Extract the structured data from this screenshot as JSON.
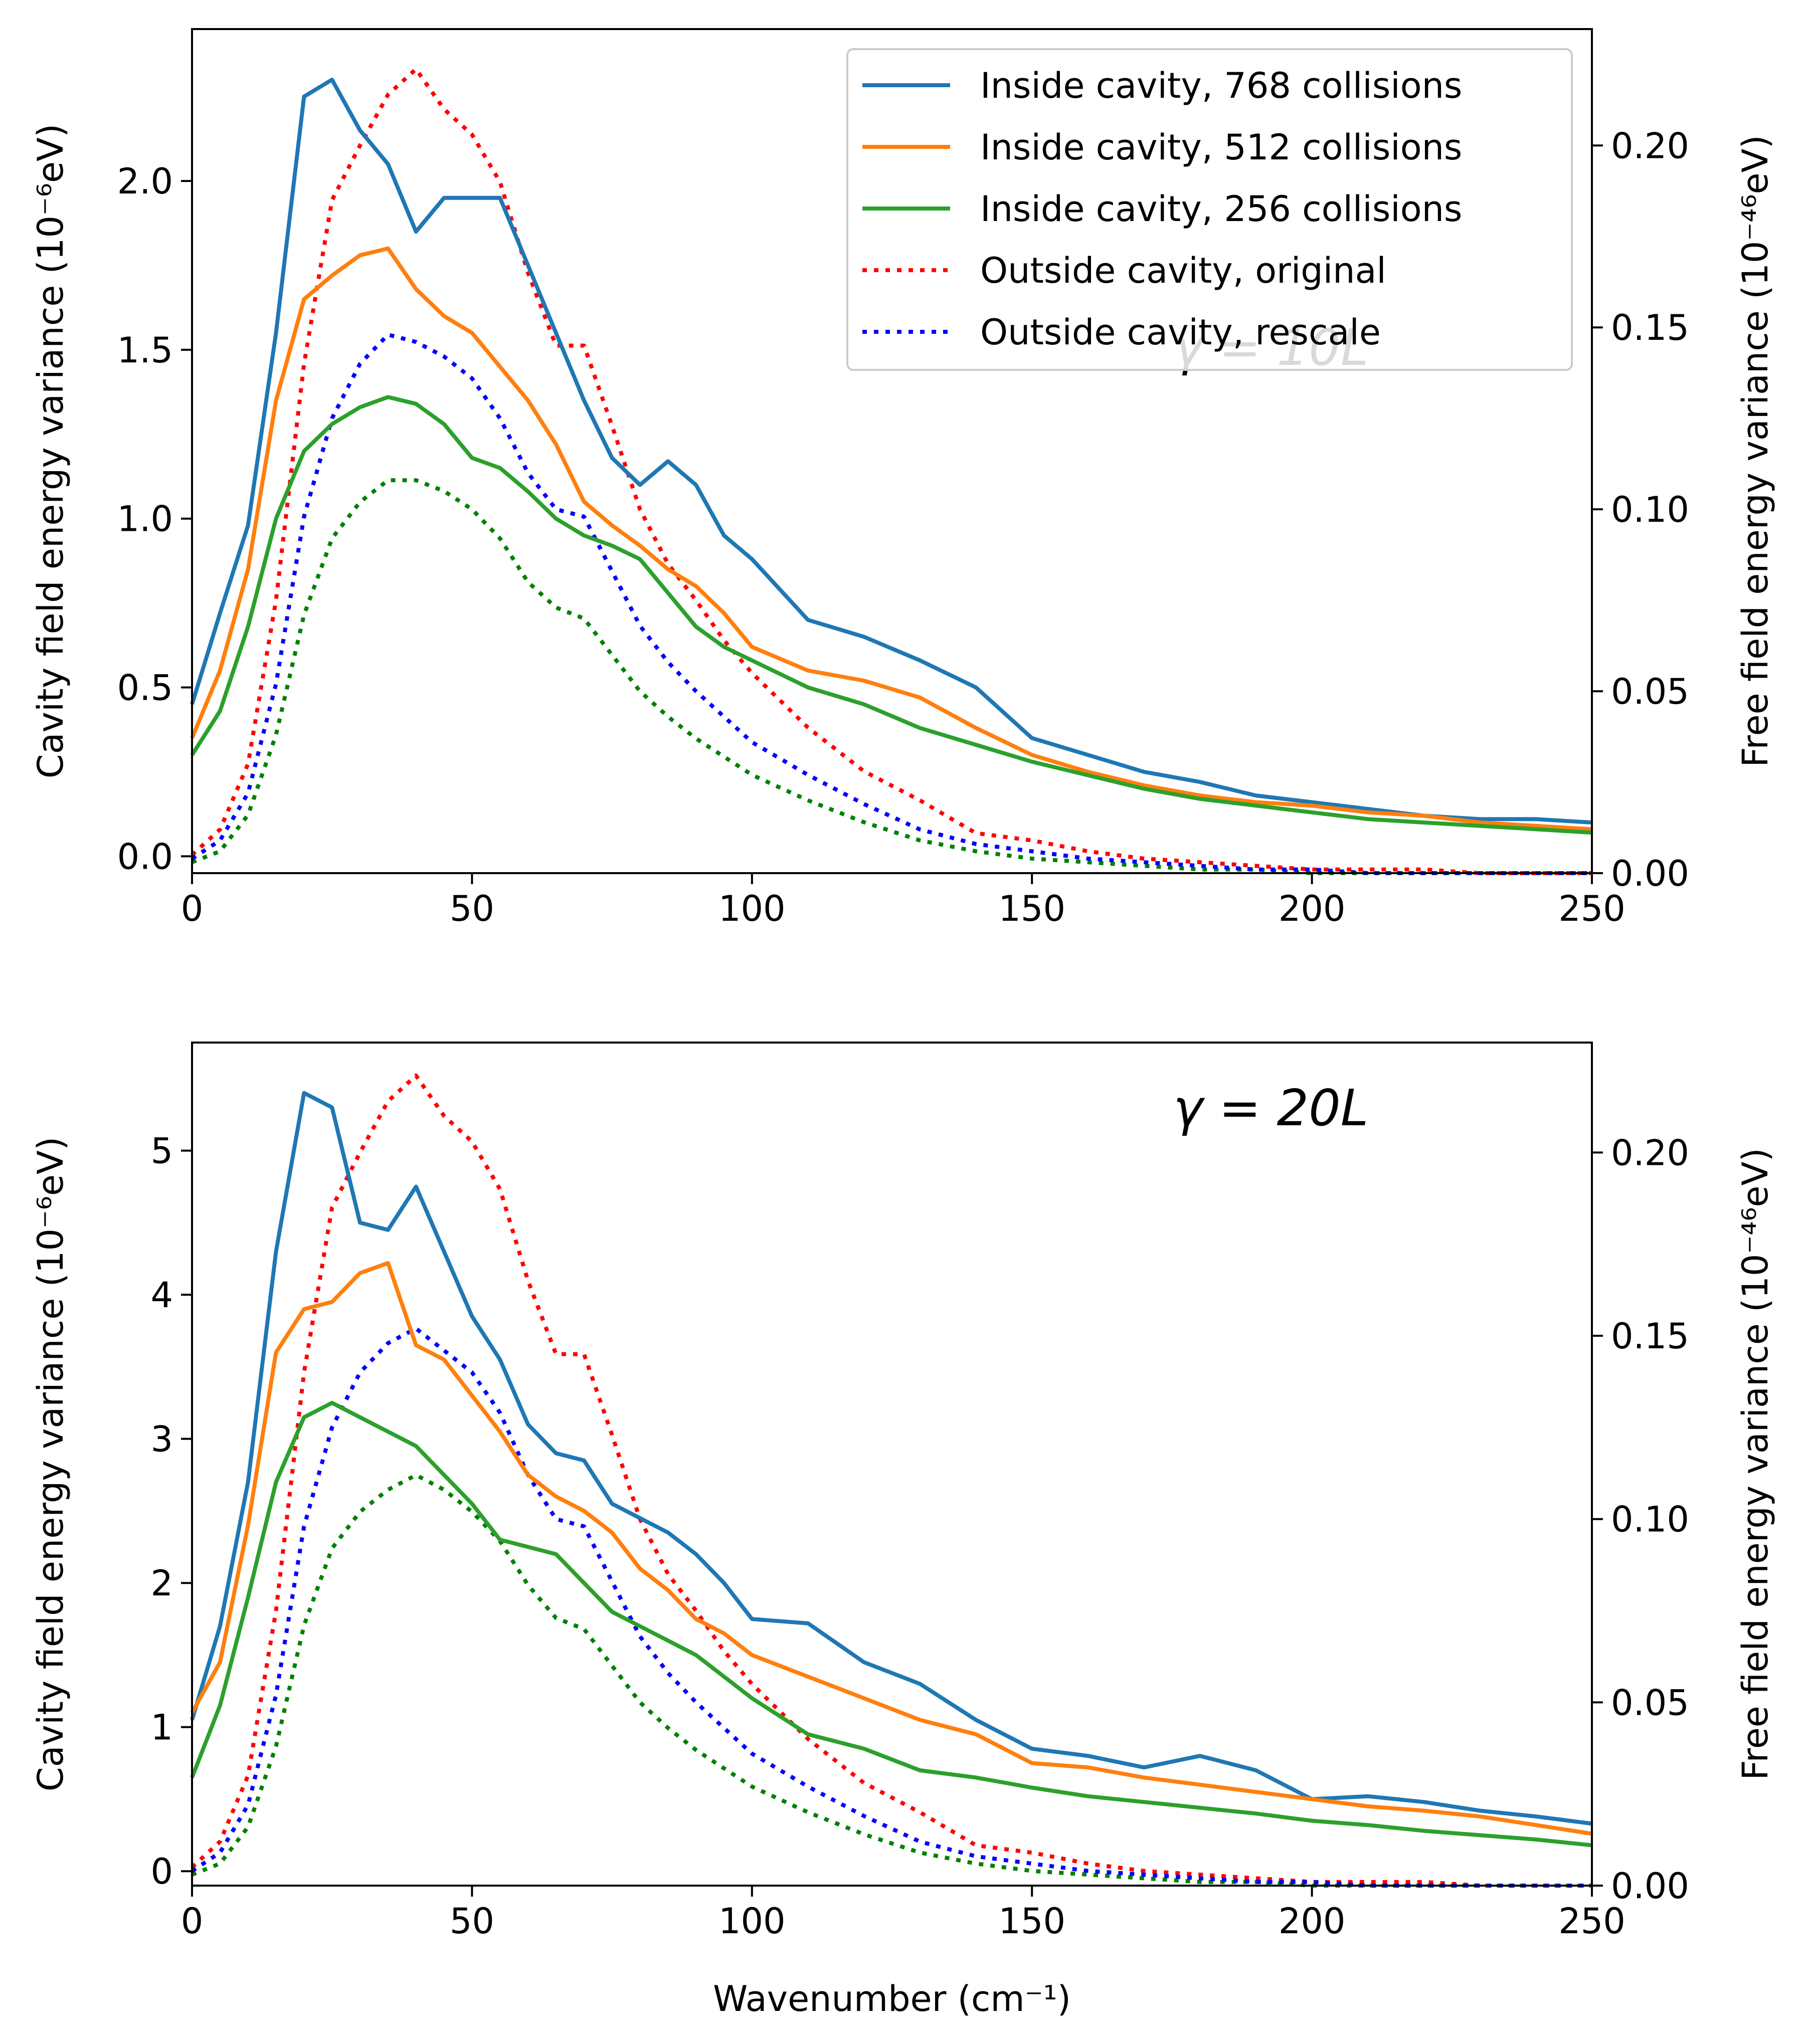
{
  "chart_data": [
    {
      "type": "line",
      "panel": "top",
      "annotation": "γ = 10L",
      "xlabel": "",
      "ylabel_left": "Cavity field energy variance (10⁻⁶eV)",
      "ylabel_right": "Free field energy variance (10⁻⁴⁶eV)",
      "xlim": [
        0,
        250
      ],
      "ylim_left": [
        -0.05,
        2.45
      ],
      "ylim_right": [
        0,
        0.232
      ],
      "xticks": [
        "0",
        "50",
        "100",
        "150",
        "200",
        "250"
      ],
      "yticks_left": [
        "0.0",
        "0.5",
        "1.0",
        "1.5",
        "2.0"
      ],
      "yticks_right": [
        "0.00",
        "0.05",
        "0.10",
        "0.15",
        "0.20"
      ],
      "grid": false,
      "legend_position": "top-right",
      "x": [
        0,
        5,
        10,
        15,
        20,
        25,
        30,
        35,
        40,
        45,
        50,
        55,
        60,
        65,
        70,
        75,
        80,
        85,
        90,
        95,
        100,
        110,
        120,
        130,
        140,
        150,
        160,
        170,
        180,
        190,
        200,
        210,
        220,
        230,
        240,
        250
      ],
      "series": [
        {
          "name": "Inside cavity, 768 collisions",
          "axis": "left",
          "style": "solid",
          "color": "#1f77b4",
          "values": [
            0.45,
            0.72,
            0.98,
            1.55,
            2.25,
            2.3,
            2.15,
            2.05,
            1.85,
            1.95,
            1.95,
            1.95,
            1.75,
            1.55,
            1.35,
            1.18,
            1.1,
            1.17,
            1.1,
            0.95,
            0.88,
            0.7,
            0.65,
            0.58,
            0.5,
            0.35,
            0.3,
            0.25,
            0.22,
            0.18,
            0.16,
            0.14,
            0.12,
            0.11,
            0.11,
            0.1
          ]
        },
        {
          "name": "Inside cavity, 512 collisions",
          "axis": "left",
          "style": "solid",
          "color": "#ff7f0e",
          "values": [
            0.35,
            0.55,
            0.85,
            1.35,
            1.65,
            1.72,
            1.78,
            1.8,
            1.68,
            1.6,
            1.55,
            1.45,
            1.35,
            1.22,
            1.05,
            0.98,
            0.92,
            0.85,
            0.8,
            0.72,
            0.62,
            0.55,
            0.52,
            0.47,
            0.38,
            0.3,
            0.25,
            0.21,
            0.18,
            0.16,
            0.15,
            0.13,
            0.12,
            0.1,
            0.09,
            0.08
          ]
        },
        {
          "name": "Inside cavity, 256 collisions",
          "axis": "left",
          "style": "solid",
          "color": "#2ca02c",
          "values": [
            0.3,
            0.43,
            0.68,
            1.0,
            1.2,
            1.28,
            1.33,
            1.36,
            1.34,
            1.28,
            1.18,
            1.15,
            1.08,
            1.0,
            0.95,
            0.92,
            0.88,
            0.78,
            0.68,
            0.62,
            0.58,
            0.5,
            0.45,
            0.38,
            0.33,
            0.28,
            0.24,
            0.2,
            0.17,
            0.15,
            0.13,
            0.11,
            0.1,
            0.09,
            0.08,
            0.07
          ]
        },
        {
          "name": "Outside cavity, original",
          "axis": "right",
          "style": "dotted",
          "color": "#ff0000",
          "values": [
            0.005,
            0.012,
            0.03,
            0.075,
            0.14,
            0.185,
            0.2,
            0.214,
            0.221,
            0.21,
            0.203,
            0.19,
            0.165,
            0.145,
            0.145,
            0.123,
            0.1,
            0.085,
            0.075,
            0.064,
            0.055,
            0.04,
            0.028,
            0.02,
            0.011,
            0.009,
            0.006,
            0.004,
            0.003,
            0.002,
            0.001,
            0.001,
            0.001,
            0.0,
            0.0,
            0.0
          ]
        },
        {
          "name": "Outside cavity, rescale",
          "axis": "right",
          "style": "dotted",
          "color": "#0000ff",
          "values": [
            0.004,
            0.009,
            0.022,
            0.052,
            0.098,
            0.125,
            0.14,
            0.148,
            0.146,
            0.142,
            0.136,
            0.125,
            0.11,
            0.1,
            0.098,
            0.083,
            0.068,
            0.058,
            0.05,
            0.043,
            0.036,
            0.027,
            0.019,
            0.012,
            0.008,
            0.006,
            0.004,
            0.003,
            0.002,
            0.001,
            0.001,
            0.0,
            0.0,
            0.0,
            0.0,
            0.0
          ]
        }
      ],
      "extra_series": [
        {
          "axis": "right",
          "style": "dotted",
          "color": "#008000",
          "values": [
            0.003,
            0.006,
            0.016,
            0.038,
            0.071,
            0.092,
            0.102,
            0.108,
            0.108,
            0.105,
            0.1,
            0.092,
            0.08,
            0.073,
            0.07,
            0.06,
            0.05,
            0.043,
            0.037,
            0.032,
            0.027,
            0.02,
            0.014,
            0.009,
            0.006,
            0.004,
            0.003,
            0.002,
            0.001,
            0.001,
            0.0,
            0.0,
            0.0,
            0.0,
            0.0,
            0.0
          ]
        }
      ]
    },
    {
      "type": "line",
      "panel": "bottom",
      "annotation": "γ = 20L",
      "xlabel": "Wavenumber (cm⁻¹)",
      "ylabel_left": "Cavity field energy variance (10⁻⁶eV)",
      "ylabel_right": "Free field energy variance (10⁻⁴⁶eV)",
      "xlim": [
        0,
        250
      ],
      "ylim_left": [
        -0.1,
        5.75
      ],
      "ylim_right": [
        0,
        0.23
      ],
      "xticks": [
        "0",
        "50",
        "100",
        "150",
        "200",
        "250"
      ],
      "yticks_left": [
        "0",
        "1",
        "2",
        "3",
        "4",
        "5"
      ],
      "yticks_right": [
        "0.00",
        "0.05",
        "0.10",
        "0.15",
        "0.20"
      ],
      "grid": false,
      "x": [
        0,
        5,
        10,
        15,
        20,
        25,
        30,
        35,
        40,
        45,
        50,
        55,
        60,
        65,
        70,
        75,
        80,
        85,
        90,
        95,
        100,
        110,
        120,
        130,
        140,
        150,
        160,
        170,
        180,
        190,
        200,
        210,
        220,
        230,
        240,
        250
      ],
      "series": [
        {
          "name": "Inside cavity, 768 collisions",
          "axis": "left",
          "style": "solid",
          "color": "#1f77b4",
          "values": [
            1.05,
            1.7,
            2.7,
            4.3,
            5.4,
            5.3,
            4.5,
            4.45,
            4.75,
            4.3,
            3.85,
            3.55,
            3.1,
            2.9,
            2.85,
            2.55,
            2.45,
            2.35,
            2.2,
            2.0,
            1.75,
            1.72,
            1.45,
            1.3,
            1.05,
            0.85,
            0.8,
            0.72,
            0.8,
            0.7,
            0.5,
            0.52,
            0.48,
            0.42,
            0.38,
            0.33
          ]
        },
        {
          "name": "Inside cavity, 512 collisions",
          "axis": "left",
          "style": "solid",
          "color": "#ff7f0e",
          "values": [
            1.1,
            1.45,
            2.4,
            3.6,
            3.9,
            3.95,
            4.15,
            4.22,
            3.65,
            3.55,
            3.3,
            3.05,
            2.75,
            2.6,
            2.5,
            2.35,
            2.1,
            1.95,
            1.75,
            1.65,
            1.5,
            1.35,
            1.2,
            1.05,
            0.95,
            0.75,
            0.72,
            0.65,
            0.6,
            0.55,
            0.5,
            0.45,
            0.42,
            0.38,
            0.32,
            0.26
          ]
        },
        {
          "name": "Inside cavity, 256 collisions",
          "axis": "left",
          "style": "solid",
          "color": "#2ca02c",
          "values": [
            0.65,
            1.15,
            1.9,
            2.7,
            3.15,
            3.25,
            3.15,
            3.05,
            2.95,
            2.75,
            2.55,
            2.3,
            2.25,
            2.2,
            2.0,
            1.8,
            1.7,
            1.6,
            1.5,
            1.35,
            1.2,
            0.95,
            0.85,
            0.7,
            0.65,
            0.58,
            0.52,
            0.48,
            0.44,
            0.4,
            0.35,
            0.32,
            0.28,
            0.25,
            0.22,
            0.18
          ]
        },
        {
          "name": "Outside cavity, original",
          "axis": "right",
          "style": "dotted",
          "color": "#ff0000",
          "values": [
            0.005,
            0.012,
            0.03,
            0.075,
            0.14,
            0.185,
            0.2,
            0.214,
            0.221,
            0.21,
            0.203,
            0.19,
            0.165,
            0.145,
            0.145,
            0.123,
            0.1,
            0.085,
            0.075,
            0.064,
            0.055,
            0.04,
            0.028,
            0.02,
            0.011,
            0.009,
            0.006,
            0.004,
            0.003,
            0.002,
            0.001,
            0.001,
            0.001,
            0.0,
            0.0,
            0.0
          ]
        },
        {
          "name": "Outside cavity, rescale",
          "axis": "right",
          "style": "dotted",
          "color": "#0000ff",
          "values": [
            0.004,
            0.009,
            0.022,
            0.052,
            0.098,
            0.125,
            0.14,
            0.148,
            0.152,
            0.146,
            0.14,
            0.129,
            0.112,
            0.1,
            0.098,
            0.083,
            0.068,
            0.058,
            0.05,
            0.043,
            0.036,
            0.027,
            0.019,
            0.012,
            0.008,
            0.006,
            0.004,
            0.003,
            0.002,
            0.001,
            0.001,
            0.0,
            0.0,
            0.0,
            0.0,
            0.0
          ]
        }
      ],
      "extra_series": [
        {
          "axis": "right",
          "style": "dotted",
          "color": "#008000",
          "values": [
            0.003,
            0.006,
            0.016,
            0.038,
            0.071,
            0.092,
            0.102,
            0.108,
            0.112,
            0.108,
            0.102,
            0.094,
            0.082,
            0.073,
            0.07,
            0.06,
            0.05,
            0.043,
            0.037,
            0.032,
            0.027,
            0.02,
            0.014,
            0.009,
            0.006,
            0.004,
            0.003,
            0.002,
            0.001,
            0.001,
            0.0,
            0.0,
            0.0,
            0.0,
            0.0,
            0.0
          ]
        }
      ]
    }
  ]
}
